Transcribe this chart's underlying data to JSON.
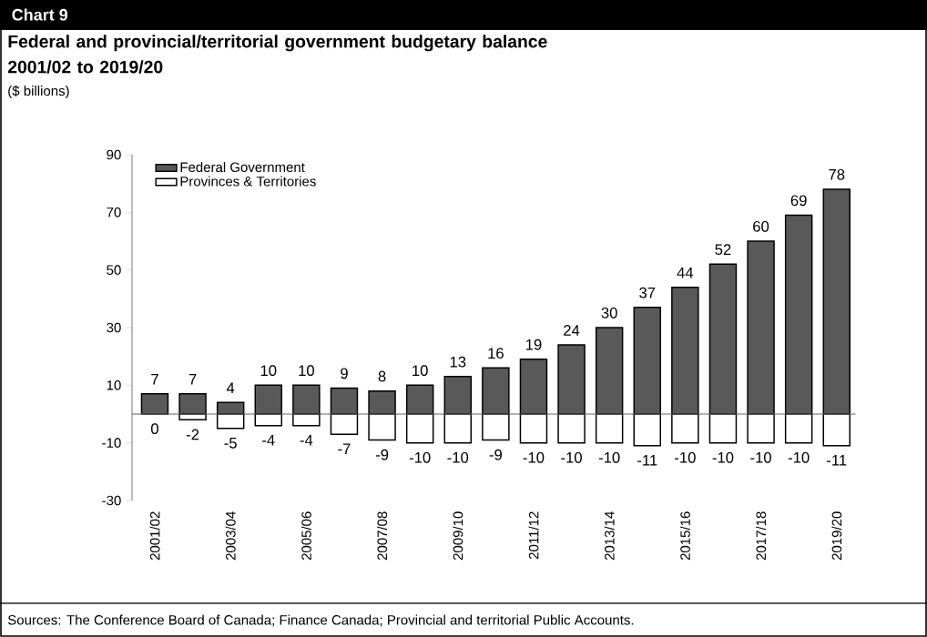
{
  "chart_data": {
    "type": "bar",
    "title": "Chart 9",
    "subtitle": "Federal and provincial/territorial government budgetary balance 2001/02 to 2019/20",
    "ylabel": "($ billions)",
    "categories": [
      "2001/02",
      null,
      "2003/04",
      null,
      "2005/06",
      null,
      "2007/08",
      null,
      "2009/10",
      null,
      "2011/12",
      null,
      "2013/14",
      null,
      "2015/16",
      null,
      "2017/18",
      null,
      "2019/20"
    ],
    "series": [
      {
        "name": "Federal Government",
        "color": "#595959",
        "values": [
          7,
          7,
          4,
          10,
          10,
          9,
          8,
          10,
          13,
          16,
          19,
          24,
          30,
          37,
          44,
          52,
          60,
          69,
          78
        ]
      },
      {
        "name": "Provinces & Territories",
        "color": "#ffffff",
        "values": [
          0,
          -2,
          -5,
          -4,
          -4,
          -7,
          -9,
          -10,
          -10,
          -9,
          -10,
          -10,
          -10,
          -11,
          -10,
          -10,
          -10,
          -10,
          -11
        ]
      }
    ],
    "ylim": [
      -30,
      90
    ],
    "yticks": [
      -30,
      -10,
      10,
      30,
      50,
      70,
      90
    ],
    "stacked": true,
    "data_labels": true,
    "legend": "top left",
    "annotations": [
      "Sources: The Conference Board of Canada; Finance Canada; Provincial and territorial Public Accounts."
    ]
  }
}
